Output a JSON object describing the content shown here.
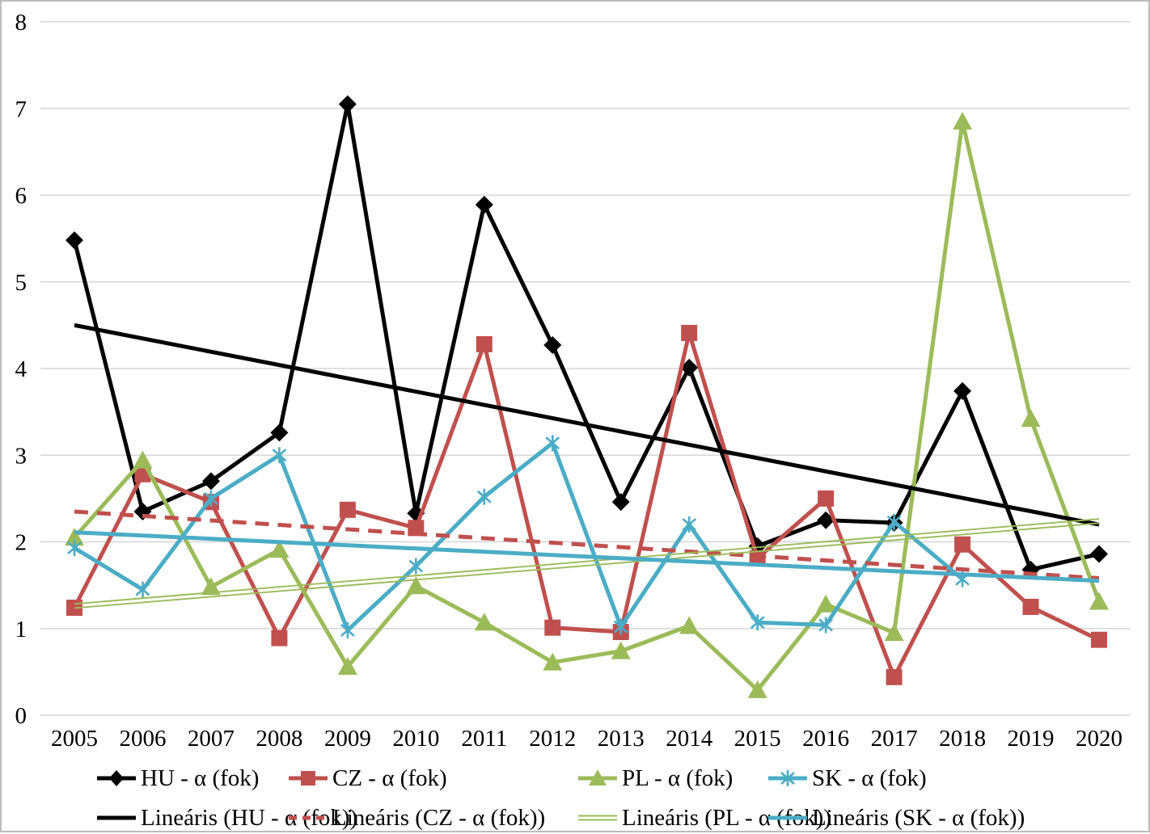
{
  "chart_data": {
    "type": "line",
    "title": "",
    "xlabel": "",
    "ylabel": "",
    "x_labels": [
      "2005",
      "2006",
      "2007",
      "2008",
      "2009",
      "2010",
      "2011",
      "2012",
      "2013",
      "2014",
      "2015",
      "2016",
      "2017",
      "2018",
      "2019",
      "2020"
    ],
    "ylim": [
      0,
      8
    ],
    "yticks": [
      "0",
      "1",
      "2",
      "3",
      "4",
      "5",
      "6",
      "7",
      "8"
    ],
    "grid": "horizontal-only",
    "gridline_color": "#D6D6D6",
    "legend_position": "bottom-two-rows",
    "series": [
      {
        "name": "HU - α (fok)",
        "color": "#000000",
        "marker": "diamond",
        "values": [
          5.48,
          2.35,
          2.7,
          3.26,
          7.05,
          2.33,
          5.89,
          4.27,
          2.46,
          4.01,
          1.95,
          2.25,
          2.22,
          3.74,
          1.68,
          1.86
        ],
        "trend": {
          "label": "Lineáris (HU - α (fok))",
          "style": "solid",
          "start": 4.5,
          "end": 2.2
        }
      },
      {
        "name": "CZ - α (fok)",
        "color": "#C0504D",
        "marker": "square",
        "values": [
          1.24,
          2.78,
          2.46,
          0.89,
          2.37,
          2.16,
          4.28,
          1.01,
          0.96,
          4.41,
          1.81,
          2.5,
          0.44,
          1.97,
          1.25,
          0.87
        ],
        "trend": {
          "label": "Lineáris (CZ - α (fok))",
          "style": "dashed",
          "start": 2.35,
          "end": 1.58
        }
      },
      {
        "name": "PL - α (fok)",
        "color": "#9BBB59",
        "marker": "triangle",
        "values": [
          2.05,
          2.94,
          1.48,
          1.91,
          0.56,
          1.49,
          1.07,
          0.61,
          0.74,
          1.03,
          0.29,
          1.28,
          0.95,
          6.85,
          3.42,
          1.31
        ],
        "trend": {
          "label": "Lineáris (PL - α (fok))",
          "style": "double",
          "start": 1.26,
          "end": 2.24
        }
      },
      {
        "name": "SK - α (fok)",
        "color": "#4BACC6",
        "marker": "star",
        "values": [
          1.93,
          1.45,
          2.5,
          3.0,
          0.98,
          1.72,
          2.52,
          3.14,
          1.02,
          2.2,
          1.07,
          1.04,
          2.23,
          1.57,
          null,
          null
        ],
        "trend": {
          "label": "Lineáris (SK - α (fok))",
          "style": "solid",
          "start": 2.11,
          "end": 1.55
        }
      }
    ]
  }
}
